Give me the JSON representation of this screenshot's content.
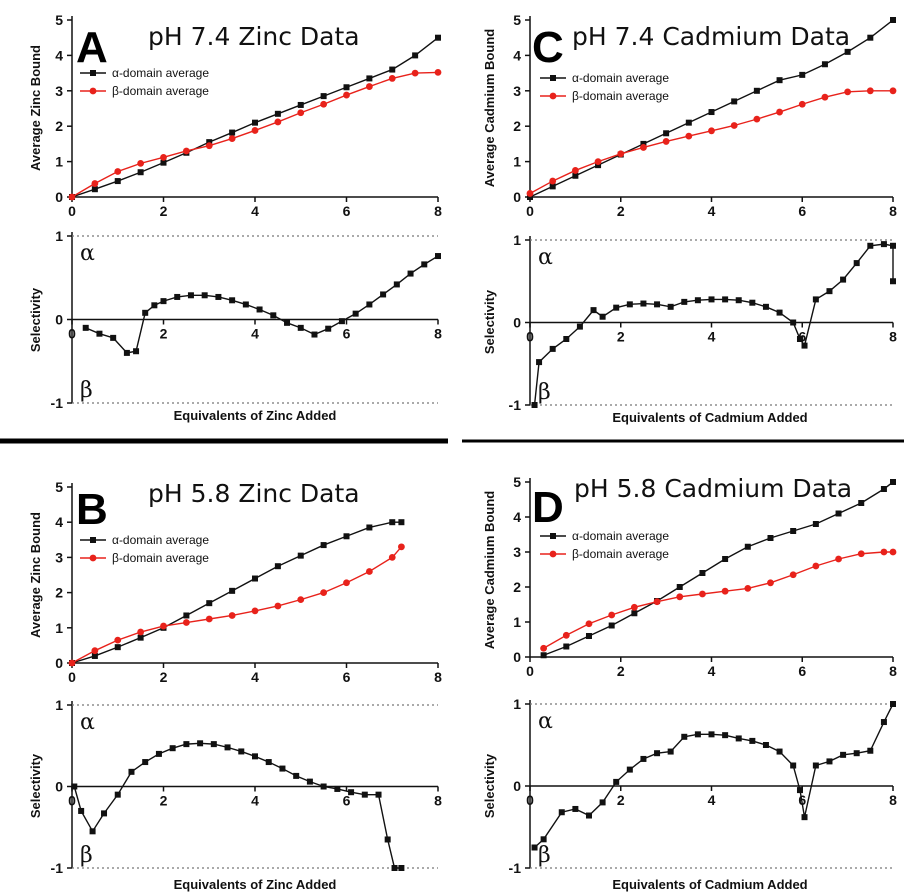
{
  "figure": {
    "colors": {
      "alpha": "#111111",
      "beta": "#e8221b",
      "axis": "#111111",
      "divider": "#000000"
    },
    "legend": {
      "alpha_label": "α-domain average",
      "beta_label": "β-domain average"
    },
    "selectivity_labels": {
      "alpha": "α",
      "beta": "β"
    }
  },
  "chart_data": [
    {
      "panel": "A",
      "type": "line",
      "title": "pH 7.4 Zinc Data",
      "top": {
        "ylabel": "Average Zinc Bound",
        "xlim": [
          0,
          8
        ],
        "ylim": [
          0,
          5
        ],
        "xticks": [
          0,
          2,
          4,
          6,
          8
        ],
        "yticks": [
          0,
          1,
          2,
          3,
          4,
          5
        ],
        "series": [
          {
            "name": "α-domain average",
            "x": [
              0,
              0.5,
              1,
              1.5,
              2,
              2.5,
              3,
              3.5,
              4,
              4.5,
              5,
              5.5,
              6,
              6.5,
              7,
              7.5,
              8
            ],
            "y": [
              0,
              0.22,
              0.45,
              0.7,
              0.97,
              1.25,
              1.55,
              1.82,
              2.1,
              2.35,
              2.6,
              2.85,
              3.1,
              3.35,
              3.6,
              4.0,
              4.5
            ]
          },
          {
            "name": "β-domain average",
            "x": [
              0,
              0.5,
              1,
              1.5,
              2,
              2.5,
              3,
              3.5,
              4,
              4.5,
              5,
              5.5,
              6,
              6.5,
              7,
              7.5,
              8
            ],
            "y": [
              0,
              0.38,
              0.72,
              0.95,
              1.12,
              1.3,
              1.45,
              1.65,
              1.88,
              2.12,
              2.38,
              2.62,
              2.88,
              3.12,
              3.35,
              3.5,
              3.52
            ]
          }
        ]
      },
      "bottom": {
        "ylabel": "Selectivity",
        "xlabel": "Equivalents of Zinc Added",
        "xlim": [
          0,
          8
        ],
        "ylim": [
          -1,
          1
        ],
        "xticks": [
          0,
          2,
          4,
          6,
          8
        ],
        "yticks": [
          -1,
          0,
          1
        ],
        "x": [
          0.3,
          0.6,
          0.9,
          1.2,
          1.4,
          1.6,
          1.8,
          2.0,
          2.3,
          2.6,
          2.9,
          3.2,
          3.5,
          3.8,
          4.1,
          4.4,
          4.7,
          5.0,
          5.3,
          5.6,
          5.9,
          6.2,
          6.5,
          6.8,
          7.1,
          7.4,
          7.7,
          8.0
        ],
        "y": [
          -0.1,
          -0.17,
          -0.22,
          -0.4,
          -0.38,
          0.08,
          0.17,
          0.22,
          0.27,
          0.29,
          0.29,
          0.27,
          0.23,
          0.18,
          0.12,
          0.05,
          -0.04,
          -0.1,
          -0.18,
          -0.11,
          -0.02,
          0.07,
          0.18,
          0.3,
          0.42,
          0.55,
          0.66,
          0.76
        ]
      }
    },
    {
      "panel": "C",
      "type": "line",
      "title": "pH 7.4 Cadmium Data",
      "top": {
        "ylabel": "Average Cadmium Bound",
        "xlim": [
          0,
          8
        ],
        "ylim": [
          0,
          5
        ],
        "xticks": [
          0,
          2,
          4,
          6,
          8
        ],
        "yticks": [
          0,
          1,
          2,
          3,
          4,
          5
        ],
        "series": [
          {
            "name": "α-domain average",
            "x": [
              0,
              0.5,
              1,
              1.5,
              2,
              2.5,
              3,
              3.5,
              4,
              4.5,
              5,
              5.5,
              6,
              6.5,
              7,
              7.5,
              8
            ],
            "y": [
              0,
              0.3,
              0.6,
              0.9,
              1.2,
              1.5,
              1.8,
              2.1,
              2.4,
              2.7,
              3.0,
              3.3,
              3.45,
              3.75,
              4.1,
              4.5,
              5.0
            ]
          },
          {
            "name": "β-domain average",
            "x": [
              0,
              0.5,
              1,
              1.5,
              2,
              2.5,
              3,
              3.5,
              4,
              4.5,
              5,
              5.5,
              6,
              6.5,
              7,
              7.5,
              8
            ],
            "y": [
              0.1,
              0.45,
              0.75,
              1.0,
              1.22,
              1.4,
              1.57,
              1.72,
              1.87,
              2.02,
              2.2,
              2.4,
              2.62,
              2.82,
              2.97,
              3.0,
              3.0
            ]
          }
        ]
      },
      "bottom": {
        "ylabel": "Selectivity",
        "xlabel": "Equivalents of Cadmium Added",
        "xlim": [
          0,
          8
        ],
        "ylim": [
          -1,
          1
        ],
        "xticks": [
          0,
          2,
          4,
          6,
          8
        ],
        "yticks": [
          -1,
          0,
          1
        ],
        "x": [
          0.1,
          0.2,
          0.5,
          0.8,
          1.1,
          1.4,
          1.6,
          1.9,
          2.2,
          2.5,
          2.8,
          3.1,
          3.4,
          3.7,
          4.0,
          4.3,
          4.6,
          4.9,
          5.2,
          5.5,
          5.8,
          5.95,
          6.05,
          6.3,
          6.6,
          6.9,
          7.2,
          7.5,
          7.8,
          8.0,
          8.0
        ],
        "y": [
          -1.0,
          -0.48,
          -0.32,
          -0.2,
          -0.05,
          0.15,
          0.07,
          0.18,
          0.22,
          0.23,
          0.22,
          0.19,
          0.25,
          0.27,
          0.28,
          0.28,
          0.27,
          0.24,
          0.19,
          0.12,
          0.0,
          -0.2,
          -0.28,
          0.28,
          0.38,
          0.52,
          0.72,
          0.93,
          0.95,
          0.93,
          0.5
        ]
      }
    },
    {
      "panel": "B",
      "type": "line",
      "title": "pH 5.8 Zinc Data",
      "top": {
        "ylabel": "Average Zinc Bound",
        "xlim": [
          0,
          8
        ],
        "ylim": [
          0,
          5
        ],
        "xticks": [
          0,
          2,
          4,
          6,
          8
        ],
        "yticks": [
          0,
          1,
          2,
          3,
          4,
          5
        ],
        "series": [
          {
            "name": "α-domain average",
            "x": [
              0,
              0.5,
              1,
              1.5,
              2,
              2.5,
              3,
              3.5,
              4,
              4.5,
              5,
              5.5,
              6,
              6.5,
              7,
              7.2
            ],
            "y": [
              0,
              0.2,
              0.45,
              0.72,
              1.0,
              1.35,
              1.7,
              2.05,
              2.4,
              2.75,
              3.05,
              3.35,
              3.6,
              3.85,
              4.0,
              4.0
            ]
          },
          {
            "name": "β-domain average",
            "x": [
              0,
              0.5,
              1,
              1.5,
              2,
              2.5,
              3,
              3.5,
              4,
              4.5,
              5,
              5.5,
              6,
              6.5,
              7,
              7.2
            ],
            "y": [
              0,
              0.35,
              0.65,
              0.88,
              1.05,
              1.15,
              1.25,
              1.35,
              1.48,
              1.62,
              1.8,
              2.0,
              2.28,
              2.6,
              3.0,
              3.3
            ]
          }
        ]
      },
      "bottom": {
        "ylabel": "Selectivity",
        "xlabel": "Equivalents of Zinc Added",
        "xlim": [
          0,
          8
        ],
        "ylim": [
          -1,
          1
        ],
        "xticks": [
          0,
          2,
          4,
          6,
          8
        ],
        "yticks": [
          -1,
          0,
          1
        ],
        "x": [
          0.05,
          0.2,
          0.45,
          0.7,
          1.0,
          1.3,
          1.6,
          1.9,
          2.2,
          2.5,
          2.8,
          3.1,
          3.4,
          3.7,
          4.0,
          4.3,
          4.6,
          4.9,
          5.2,
          5.5,
          5.8,
          6.1,
          6.4,
          6.7,
          6.9,
          7.05,
          7.2
        ],
        "y": [
          0,
          -0.3,
          -0.55,
          -0.33,
          -0.1,
          0.18,
          0.3,
          0.4,
          0.47,
          0.52,
          0.53,
          0.52,
          0.48,
          0.43,
          0.37,
          0.3,
          0.22,
          0.13,
          0.06,
          0.0,
          -0.03,
          -0.07,
          -0.1,
          -0.1,
          -0.65,
          -1.0,
          -1.0
        ]
      }
    },
    {
      "panel": "D",
      "type": "line",
      "title": "pH 5.8 Cadmium Data",
      "top": {
        "ylabel": "Average Cadmium Bound",
        "xlim": [
          0,
          8
        ],
        "ylim": [
          0,
          5
        ],
        "xticks": [
          0,
          2,
          4,
          6,
          8
        ],
        "yticks": [
          0,
          1,
          2,
          3,
          4,
          5
        ],
        "series": [
          {
            "name": "α-domain average",
            "x": [
              0.3,
              0.8,
              1.3,
              1.8,
              2.3,
              2.8,
              3.3,
              3.8,
              4.3,
              4.8,
              5.3,
              5.8,
              6.3,
              6.8,
              7.3,
              7.8,
              8.0
            ],
            "y": [
              0.05,
              0.3,
              0.6,
              0.9,
              1.25,
              1.6,
              2.0,
              2.4,
              2.8,
              3.15,
              3.4,
              3.6,
              3.8,
              4.1,
              4.4,
              4.8,
              5.0
            ]
          },
          {
            "name": "β-domain average",
            "x": [
              0.3,
              0.8,
              1.3,
              1.8,
              2.3,
              2.8,
              3.3,
              3.8,
              4.3,
              4.8,
              5.3,
              5.8,
              6.3,
              6.8,
              7.3,
              7.8,
              8.0
            ],
            "y": [
              0.25,
              0.62,
              0.95,
              1.2,
              1.42,
              1.58,
              1.72,
              1.8,
              1.88,
              1.96,
              2.12,
              2.35,
              2.6,
              2.8,
              2.95,
              3.0,
              3.0
            ]
          }
        ]
      },
      "bottom": {
        "ylabel": "Selectivity",
        "xlabel": "Equivalents of Cadmium Added",
        "xlim": [
          0,
          8
        ],
        "ylim": [
          -1,
          1
        ],
        "xticks": [
          0,
          2,
          4,
          6,
          8
        ],
        "yticks": [
          -1,
          0,
          1
        ],
        "x": [
          0.1,
          0.3,
          0.7,
          1.0,
          1.3,
          1.6,
          1.9,
          2.2,
          2.5,
          2.8,
          3.1,
          3.4,
          3.7,
          4.0,
          4.3,
          4.6,
          4.9,
          5.2,
          5.5,
          5.8,
          5.95,
          6.05,
          6.3,
          6.6,
          6.9,
          7.2,
          7.5,
          7.8,
          8.0
        ],
        "y": [
          -0.75,
          -0.65,
          -0.32,
          -0.28,
          -0.36,
          -0.2,
          0.05,
          0.2,
          0.33,
          0.4,
          0.42,
          0.6,
          0.63,
          0.63,
          0.62,
          0.58,
          0.55,
          0.5,
          0.42,
          0.25,
          -0.05,
          -0.38,
          0.25,
          0.3,
          0.38,
          0.4,
          0.43,
          0.78,
          1.0
        ]
      }
    }
  ]
}
